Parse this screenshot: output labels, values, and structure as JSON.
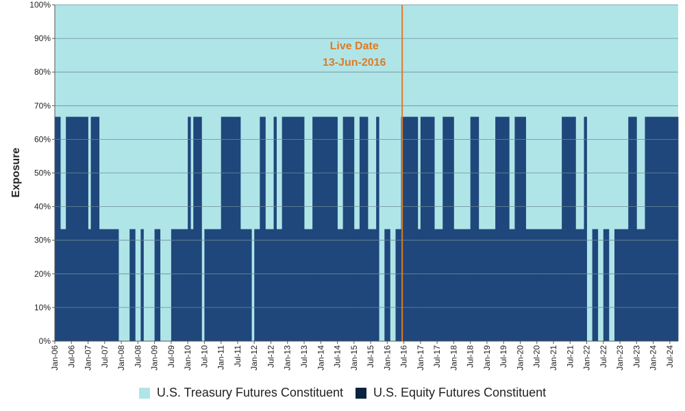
{
  "chart_data": {
    "type": "area",
    "ylabel": "Exposure",
    "ylim": [
      0,
      100
    ],
    "yticks": [
      "0%",
      "10%",
      "20%",
      "30%",
      "40%",
      "50%",
      "60%",
      "70%",
      "80%",
      "90%",
      "100%"
    ],
    "xticks": [
      "Jan-06",
      "Jul-06",
      "Jan-07",
      "Jul-07",
      "Jan-08",
      "Jul-08",
      "Jan-09",
      "Jul-09",
      "Jan-10",
      "Jul-10",
      "Jan-11",
      "Jul-11",
      "Jan-12",
      "Jul-12",
      "Jan-13",
      "Jul-13",
      "Jan-14",
      "Jul-14",
      "Jan-15",
      "Jul-15",
      "Jan-16",
      "Jul-16",
      "Jan-17",
      "Jul-17",
      "Jan-18",
      "Jul-18",
      "Jan-19",
      "Jul-19",
      "Jan-20",
      "Jul-20",
      "Jan-21",
      "Jul-21",
      "Jan-22",
      "Jul-22",
      "Jan-23",
      "Jul-23",
      "Jan-24",
      "Jul-24"
    ],
    "x_start": "Jan-06",
    "x_end": "Oct-24",
    "grid": true,
    "legend_position": "bottom",
    "series": [
      {
        "name": "U.S. Treasury Futures Constituent",
        "color": "#B0E5E8",
        "fill": "remainder to 100%"
      },
      {
        "name": "U.S. Equity Futures Constituent",
        "color": "#1F477B",
        "segments": [
          [
            "Jan-06",
            "Mar-06",
            66.7
          ],
          [
            "Mar-06",
            "May-06",
            33.3
          ],
          [
            "May-06",
            "Jan-07",
            66.7
          ],
          [
            "Jan-07",
            "Feb-07",
            33.3
          ],
          [
            "Feb-07",
            "May-07",
            66.7
          ],
          [
            "May-07",
            "Dec-07",
            33.3
          ],
          [
            "Dec-07",
            "Apr-08",
            0
          ],
          [
            "Apr-08",
            "Jun-08",
            33.3
          ],
          [
            "Jun-08",
            "Aug-08",
            0
          ],
          [
            "Aug-08",
            "Sep-08",
            33.3
          ],
          [
            "Sep-08",
            "Jan-09",
            0
          ],
          [
            "Jan-09",
            "Mar-09",
            33.3
          ],
          [
            "Mar-09",
            "Jul-09",
            0
          ],
          [
            "Jul-09",
            "Jan-10",
            33.3
          ],
          [
            "Jan-10",
            "Feb-10",
            66.7
          ],
          [
            "Feb-10",
            "Mar-10",
            33.3
          ],
          [
            "Mar-10",
            "Jun-10",
            66.7
          ],
          [
            "Jun-10",
            "Jul-10",
            0
          ],
          [
            "Jul-10",
            "Jan-11",
            33.3
          ],
          [
            "Jan-11",
            "Aug-11",
            66.7
          ],
          [
            "Aug-11",
            "Dec-11",
            33.3
          ],
          [
            "Dec-11",
            "Jan-12",
            0
          ],
          [
            "Jan-12",
            "Mar-12",
            33.3
          ],
          [
            "Mar-12",
            "May-12",
            66.7
          ],
          [
            "May-12",
            "Aug-12",
            33.3
          ],
          [
            "Aug-12",
            "Sep-12",
            66.7
          ],
          [
            "Sep-12",
            "Nov-12",
            33.3
          ],
          [
            "Nov-12",
            "Jul-13",
            66.7
          ],
          [
            "Jul-13",
            "Oct-13",
            33.3
          ],
          [
            "Oct-13",
            "Jul-14",
            66.7
          ],
          [
            "Jul-14",
            "Sep-14",
            33.3
          ],
          [
            "Sep-14",
            "Jan-15",
            66.7
          ],
          [
            "Jan-15",
            "Mar-15",
            33.3
          ],
          [
            "Mar-15",
            "Jun-15",
            66.7
          ],
          [
            "Jun-15",
            "Sep-15",
            33.3
          ],
          [
            "Sep-15",
            "Oct-15",
            66.7
          ],
          [
            "Oct-15",
            "Dec-15",
            0
          ],
          [
            "Dec-15",
            "Feb-16",
            33.3
          ],
          [
            "Feb-16",
            "Apr-16",
            0
          ],
          [
            "Apr-16",
            "Jun-16",
            33.3
          ],
          [
            "Jun-16",
            "Dec-16",
            66.7
          ],
          [
            "Dec-16",
            "Jan-17",
            33.3
          ],
          [
            "Jan-17",
            "Jun-17",
            66.7
          ],
          [
            "Jun-17",
            "Sep-17",
            33.3
          ],
          [
            "Sep-17",
            "Jan-18",
            66.7
          ],
          [
            "Jan-18",
            "Jul-18",
            33.3
          ],
          [
            "Jul-18",
            "Oct-18",
            66.7
          ],
          [
            "Oct-18",
            "Jan-19",
            33.3
          ],
          [
            "Jan-19",
            "Apr-19",
            33.3
          ],
          [
            "Apr-19",
            "Sep-19",
            66.7
          ],
          [
            "Sep-19",
            "Nov-19",
            33.3
          ],
          [
            "Nov-19",
            "Mar-20",
            66.7
          ],
          [
            "Mar-20",
            "Sep-20",
            33.3
          ],
          [
            "Sep-20",
            "Jan-21",
            33.3
          ],
          [
            "Jan-21",
            "Apr-21",
            33.3
          ],
          [
            "Apr-21",
            "Jun-21",
            66.7
          ],
          [
            "Jun-21",
            "Sep-21",
            66.7
          ],
          [
            "Sep-21",
            "Dec-21",
            33.3
          ],
          [
            "Dec-21",
            "Jan-22",
            66.7
          ],
          [
            "Jan-22",
            "Mar-22",
            0
          ],
          [
            "Mar-22",
            "May-22",
            33.3
          ],
          [
            "May-22",
            "Jul-22",
            0
          ],
          [
            "Jul-22",
            "Sep-22",
            33.3
          ],
          [
            "Sep-22",
            "Nov-22",
            0
          ],
          [
            "Nov-22",
            "Apr-23",
            33.3
          ],
          [
            "Apr-23",
            "Jul-23",
            66.7
          ],
          [
            "Jul-23",
            "Oct-23",
            33.3
          ],
          [
            "Oct-23",
            "Oct-24",
            66.7
          ]
        ]
      }
    ],
    "annotations": [
      {
        "date": "13-Jun-2016",
        "line1": "Live Date",
        "line2": "13-Jun-2016",
        "color": "#E07A22"
      }
    ]
  }
}
